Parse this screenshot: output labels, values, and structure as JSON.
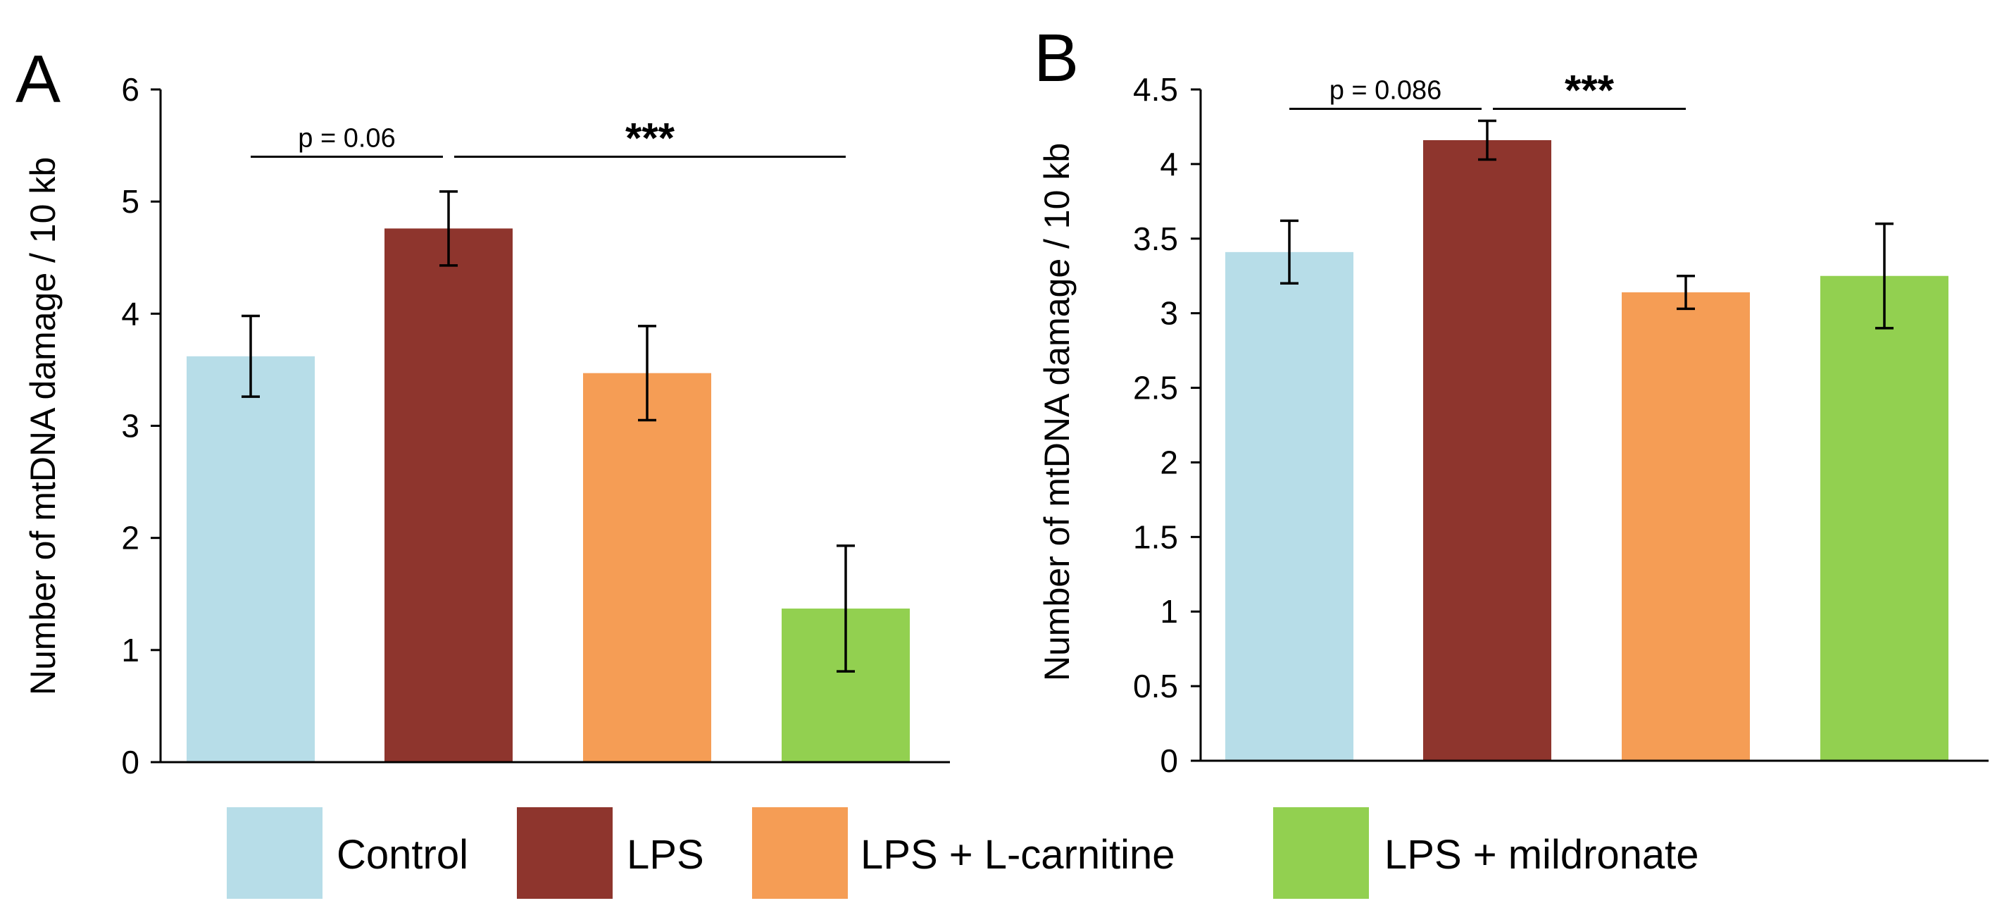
{
  "chart_data": [
    {
      "type": "bar",
      "panel": "A",
      "ylabel": "Number of mtDNA damage / 10 kb",
      "ylim": [
        0,
        6
      ],
      "yticks": [
        "0",
        "1",
        "2",
        "3",
        "4",
        "5",
        "6"
      ],
      "categories": [
        "Control",
        "LPS",
        "LPS + L-carnitine",
        "LPS + mildronate"
      ],
      "values": [
        3.62,
        4.76,
        3.47,
        1.37
      ],
      "errors": [
        0.36,
        0.33,
        0.42,
        0.56
      ],
      "annotations": [
        {
          "text": "p = 0.06",
          "from": 0,
          "to": 1,
          "y": 5.4,
          "style": "p"
        },
        {
          "text": "***",
          "from": 1,
          "to": 3,
          "y": 5.4,
          "style": "stars"
        }
      ]
    },
    {
      "type": "bar",
      "panel": "B",
      "ylabel": "Number of mtDNA damage / 10 kb",
      "ylim": [
        0,
        4.5
      ],
      "yticks": [
        "0",
        "0.5",
        "1",
        "1.5",
        "2",
        "2.5",
        "3",
        "3.5",
        "4",
        "4.5"
      ],
      "categories": [
        "Control",
        "LPS",
        "LPS + L-carnitine",
        "LPS + mildronate"
      ],
      "values": [
        3.41,
        4.16,
        3.14,
        3.25
      ],
      "errors": [
        0.21,
        0.13,
        0.11,
        0.35
      ],
      "annotations": [
        {
          "text": "p = 0.086",
          "from": 0,
          "to": 1,
          "y": 4.37,
          "style": "p"
        },
        {
          "text": "***",
          "from": 1,
          "to": 2,
          "y": 4.37,
          "style": "stars"
        }
      ]
    }
  ],
  "legend": {
    "placement": "bottom",
    "items": [
      {
        "label": "Control",
        "color": "#B7DDE8"
      },
      {
        "label": "LPS",
        "color": "#8E352D"
      },
      {
        "label": "LPS + L-carnitine",
        "color": "#F59D55"
      },
      {
        "label": "LPS + mildronate",
        "color": "#92D050"
      }
    ]
  }
}
